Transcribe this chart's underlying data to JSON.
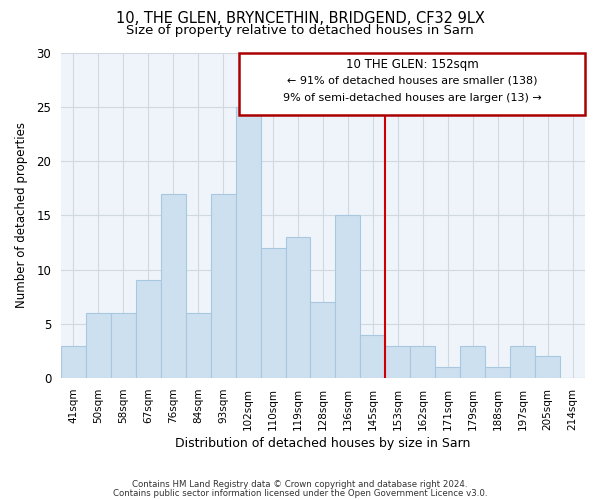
{
  "title": "10, THE GLEN, BRYNCETHIN, BRIDGEND, CF32 9LX",
  "subtitle": "Size of property relative to detached houses in Sarn",
  "xlabel": "Distribution of detached houses by size in Sarn",
  "ylabel": "Number of detached properties",
  "bin_labels": [
    "41sqm",
    "50sqm",
    "58sqm",
    "67sqm",
    "76sqm",
    "84sqm",
    "93sqm",
    "102sqm",
    "110sqm",
    "119sqm",
    "128sqm",
    "136sqm",
    "145sqm",
    "153sqm",
    "162sqm",
    "171sqm",
    "179sqm",
    "188sqm",
    "197sqm",
    "205sqm",
    "214sqm"
  ],
  "bar_heights": [
    3,
    6,
    6,
    9,
    17,
    6,
    17,
    25,
    12,
    13,
    7,
    15,
    4,
    3,
    3,
    1,
    3,
    1,
    3,
    2,
    0
  ],
  "bar_color": "#cce0f0",
  "bar_edge_color": "#a8c8e0",
  "vline_color": "#cc0000",
  "annotation_title": "10 THE GLEN: 152sqm",
  "annotation_line1": "← 91% of detached houses are smaller (138)",
  "annotation_line2": "9% of semi-detached houses are larger (13) →",
  "annotation_box_color": "#ffffff",
  "annotation_border_color": "#aa0000",
  "ylim": [
    0,
    30
  ],
  "yticks": [
    0,
    5,
    10,
    15,
    20,
    25,
    30
  ],
  "grid_color": "#d0d8e0",
  "plot_bg_color": "#eef4fa",
  "footer1": "Contains HM Land Registry data © Crown copyright and database right 2024.",
  "footer2": "Contains public sector information licensed under the Open Government Licence v3.0.",
  "bg_color": "#ffffff",
  "title_fontsize": 10.5,
  "subtitle_fontsize": 9.5
}
